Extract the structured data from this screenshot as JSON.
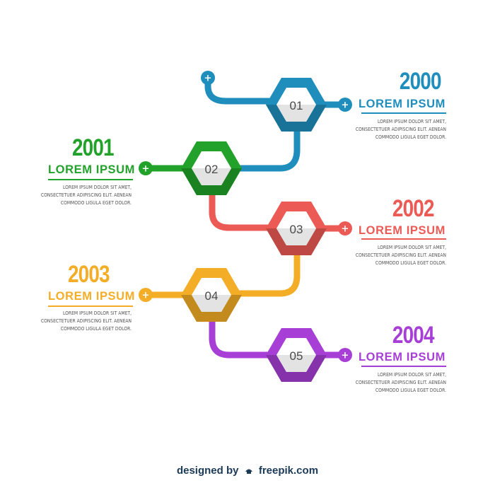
{
  "colors": {
    "step1": "#1f8ebd",
    "step2": "#22a22a",
    "step3": "#ec5a55",
    "step4": "#f4ad26",
    "step5": "#a73fd6"
  },
  "steps": [
    {
      "number": "01",
      "year": "2000",
      "heading": "LOREM IPSUM",
      "lines": [
        "LOREM IPSUM DOLOR SIT AMET,",
        "CONSECTETUER ADIPISCING ELIT. AENEAN",
        "COMMODO LIGULA EGET DOLOR."
      ]
    },
    {
      "number": "02",
      "year": "2001",
      "heading": "LOREM IPSUM",
      "lines": [
        "LOREM IPSUM DOLOR SIT AMET,",
        "CONSECTETUER ADIPISCING ELIT. AENEAN",
        "COMMODO LIGULA EGET DOLOR."
      ]
    },
    {
      "number": "03",
      "year": "2002",
      "heading": "LOREM IPSUM",
      "lines": [
        "LOREM IPSUM DOLOR SIT AMET,",
        "CONSECTETUER ADIPISCING ELIT. AENEAN",
        "COMMODO LIGULA EGET DOLOR."
      ]
    },
    {
      "number": "04",
      "year": "2003",
      "heading": "LOREM IPSUM",
      "lines": [
        "LOREM IPSUM DOLOR SIT AMET,",
        "CONSECTETUER ADIPISCING ELIT. AENEAN",
        "COMMODO LIGULA EGET DOLOR."
      ]
    },
    {
      "number": "05",
      "year": "2004",
      "heading": "LOREM IPSUM",
      "lines": [
        "LOREM IPSUM DOLOR SIT AMET,",
        "CONSECTETUER ADIPISCING ELIT. AENEAN",
        "COMMODO LIGULA EGET DOLOR."
      ]
    }
  ],
  "plus_symbol": "+",
  "credit": {
    "prefix": "designed by",
    "brand": "freepik.com"
  }
}
